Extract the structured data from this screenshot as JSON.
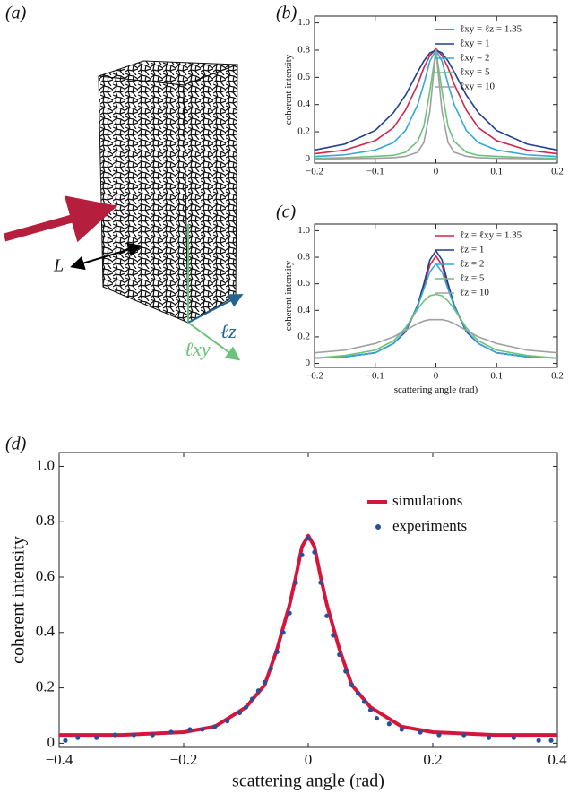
{
  "panel_labels": [
    "(a)",
    "(b)",
    "(c)",
    "(d)"
  ],
  "illustration": {
    "labels": [
      "L",
      "ℓz",
      "ℓxy"
    ]
  },
  "chart_data": [
    {
      "type": "line",
      "ylabel": "coherent intensity",
      "x": [
        -0.2,
        -0.15,
        -0.1,
        -0.07,
        -0.05,
        -0.03,
        -0.02,
        -0.01,
        0,
        0.01,
        0.02,
        0.03,
        0.05,
        0.07,
        0.1,
        0.15,
        0.2
      ],
      "xlim": [
        -0.2,
        0.2
      ],
      "xticks": [
        {
          "value": -0.2,
          "label": "−0.2"
        },
        {
          "value": -0.1,
          "label": "−0.1"
        },
        0,
        0.1,
        0.2
      ],
      "ylim": [
        -0.03,
        1.05
      ],
      "yticks": [
        0,
        0.2,
        0.4,
        0.6,
        0.8,
        {
          "value": 1,
          "label": "1.0"
        }
      ],
      "legend": "upper right",
      "series": [
        {
          "name": "ℓxy = ℓz = 1.35",
          "color": "#d0264a",
          "values": [
            0.039,
            0.066,
            0.135,
            0.23,
            0.36,
            0.55,
            0.67,
            0.76,
            0.81,
            0.76,
            0.67,
            0.55,
            0.36,
            0.23,
            0.135,
            0.066,
            0.039
          ]
        },
        {
          "name": "ℓxy = 1",
          "color": "#1f3f8f",
          "values": [
            0.066,
            0.11,
            0.21,
            0.34,
            0.47,
            0.64,
            0.72,
            0.78,
            0.8,
            0.78,
            0.72,
            0.64,
            0.47,
            0.34,
            0.21,
            0.11,
            0.066
          ]
        },
        {
          "name": "ℓxy = 2",
          "color": "#35a8d8",
          "values": [
            0.018,
            0.031,
            0.066,
            0.12,
            0.21,
            0.4,
            0.55,
            0.72,
            0.8,
            0.72,
            0.55,
            0.4,
            0.21,
            0.12,
            0.066,
            0.031,
            0.018
          ]
        },
        {
          "name": "ℓxy = 5",
          "color": "#6cc27a",
          "values": [
            0.005,
            0.01,
            0.02,
            0.027,
            0.05,
            0.13,
            0.24,
            0.5,
            0.8,
            0.5,
            0.24,
            0.13,
            0.05,
            0.027,
            0.02,
            0.01,
            0.005
          ]
        },
        {
          "name": "ℓxy = 10",
          "color": "#a0a0a0",
          "values": [
            0,
            0.003,
            0.006,
            0.01,
            0.02,
            0.05,
            0.12,
            0.35,
            0.8,
            0.35,
            0.12,
            0.05,
            0.02,
            0.01,
            0.006,
            0.003,
            0
          ]
        }
      ]
    },
    {
      "type": "line",
      "ylabel": "coherent intensity",
      "xlabel": "scattering angle (rad)",
      "x": [
        -0.2,
        -0.15,
        -0.1,
        -0.07,
        -0.05,
        -0.03,
        -0.02,
        -0.01,
        0,
        0.01,
        0.02,
        0.03,
        0.05,
        0.07,
        0.1,
        0.15,
        0.2
      ],
      "xlim": [
        -0.2,
        0.2
      ],
      "xticks": [
        {
          "value": -0.2,
          "label": "−0.2"
        },
        {
          "value": -0.1,
          "label": "−0.1"
        },
        0,
        0.1,
        0.2
      ],
      "ylim": [
        -0.03,
        1.05
      ],
      "yticks": [
        0,
        0.2,
        0.4,
        0.6,
        0.8,
        {
          "value": 1,
          "label": "1.0"
        }
      ],
      "legend": "upper right",
      "series": [
        {
          "name": "ℓz = ℓxy = 1.35",
          "color": "#d0264a",
          "values": [
            0.04,
            0.05,
            0.08,
            0.15,
            0.24,
            0.43,
            0.58,
            0.74,
            0.81,
            0.74,
            0.58,
            0.43,
            0.24,
            0.15,
            0.08,
            0.05,
            0.04
          ]
        },
        {
          "name": "ℓz = 1",
          "color": "#1f3f8f",
          "values": [
            0.04,
            0.05,
            0.08,
            0.15,
            0.24,
            0.44,
            0.6,
            0.78,
            0.85,
            0.78,
            0.6,
            0.44,
            0.24,
            0.15,
            0.08,
            0.05,
            0.04
          ]
        },
        {
          "name": "ℓz = 2",
          "color": "#35a8d8",
          "values": [
            0.04,
            0.05,
            0.08,
            0.15,
            0.25,
            0.43,
            0.56,
            0.69,
            0.75,
            0.69,
            0.56,
            0.43,
            0.25,
            0.15,
            0.08,
            0.05,
            0.04
          ]
        },
        {
          "name": "ℓz = 5",
          "color": "#6cc27a",
          "values": [
            0.04,
            0.06,
            0.1,
            0.17,
            0.27,
            0.41,
            0.47,
            0.51,
            0.52,
            0.51,
            0.47,
            0.41,
            0.27,
            0.17,
            0.1,
            0.06,
            0.04
          ]
        },
        {
          "name": "ℓz = 10",
          "color": "#a0a0a0",
          "values": [
            0.08,
            0.1,
            0.15,
            0.2,
            0.25,
            0.3,
            0.32,
            0.33,
            0.33,
            0.33,
            0.32,
            0.3,
            0.25,
            0.2,
            0.15,
            0.1,
            0.08
          ]
        }
      ]
    },
    {
      "type": "line",
      "ylabel": "coherent intensity",
      "xlabel": "scattering angle (rad)",
      "xlim": [
        -0.4,
        0.4
      ],
      "xticks": [
        {
          "value": -0.4,
          "label": "−0.4"
        },
        {
          "value": -0.2,
          "label": "−0.2"
        },
        0,
        0.2,
        0.4
      ],
      "ylim": [
        -0.015,
        1.05
      ],
      "yticks": [
        0,
        0.2,
        0.4,
        0.6,
        0.8,
        {
          "value": 1,
          "label": "1.0"
        }
      ],
      "legend": "center right",
      "series": [
        {
          "name": "simulations",
          "color": "#d4153c",
          "style": "line",
          "x": [
            -0.4,
            -0.3,
            -0.2,
            -0.15,
            -0.1,
            -0.07,
            -0.05,
            -0.03,
            -0.02,
            -0.01,
            0,
            0.01,
            0.02,
            0.03,
            0.05,
            0.07,
            0.1,
            0.15,
            0.2,
            0.3,
            0.4
          ],
          "values": [
            0.03,
            0.03,
            0.04,
            0.06,
            0.13,
            0.21,
            0.34,
            0.5,
            0.6,
            0.71,
            0.75,
            0.71,
            0.6,
            0.5,
            0.34,
            0.21,
            0.13,
            0.06,
            0.04,
            0.03,
            0.03
          ]
        },
        {
          "name": "experiments",
          "color": "#2a4f9a",
          "style": "points",
          "x": [
            -0.39,
            -0.37,
            -0.34,
            -0.31,
            -0.28,
            -0.25,
            -0.22,
            -0.19,
            -0.17,
            -0.15,
            -0.13,
            -0.11,
            -0.1,
            -0.09,
            -0.08,
            -0.07,
            -0.06,
            -0.05,
            -0.04,
            -0.03,
            -0.02,
            -0.01,
            0,
            0.01,
            0.02,
            0.03,
            0.04,
            0.05,
            0.06,
            0.07,
            0.08,
            0.09,
            0.1,
            0.11,
            0.13,
            0.15,
            0.18,
            0.21,
            0.25,
            0.29,
            0.33,
            0.37,
            0.39
          ],
          "values": [
            0.01,
            0.02,
            0.02,
            0.03,
            0.03,
            0.03,
            0.04,
            0.05,
            0.05,
            0.06,
            0.08,
            0.11,
            0.13,
            0.16,
            0.19,
            0.22,
            0.27,
            0.33,
            0.4,
            0.47,
            0.58,
            0.68,
            0.74,
            0.69,
            0.58,
            0.46,
            0.39,
            0.32,
            0.26,
            0.21,
            0.18,
            0.15,
            0.12,
            0.09,
            0.07,
            0.05,
            0.04,
            0.03,
            0.03,
            0.02,
            0.02,
            0.01,
            0.01
          ]
        }
      ]
    }
  ]
}
